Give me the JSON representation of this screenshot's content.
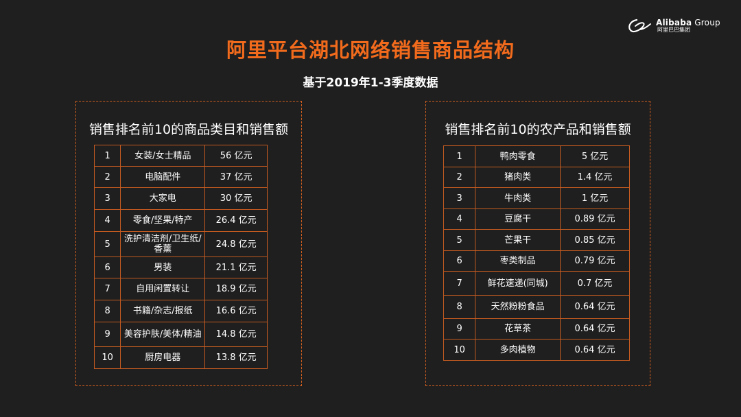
{
  "logo": {
    "brand_bold": "Alibaba",
    "brand_rest": " Group",
    "sub": "阿里巴巴集团"
  },
  "title": "阿里平台湖北网络销售商品结构",
  "subtitle": "基于2019年1-3季度数据",
  "left_panel": {
    "heading": "销售排名前10的商品类目和销售额",
    "rows": [
      {
        "rank": "1",
        "name": "女装/女士精品",
        "value": "56 亿元"
      },
      {
        "rank": "2",
        "name": "电脑配件",
        "value": "37 亿元"
      },
      {
        "rank": "3",
        "name": "大家电",
        "value": "30 亿元"
      },
      {
        "rank": "4",
        "name": "零食/坚果/特产",
        "value": "26.4 亿元"
      },
      {
        "rank": "5",
        "name": "洗护清洁剂/卫生纸/香薰",
        "value": "24.8 亿元"
      },
      {
        "rank": "6",
        "name": "男装",
        "value": "21.1 亿元"
      },
      {
        "rank": "7",
        "name": "自用闲置转让",
        "value": "18.9 亿元"
      },
      {
        "rank": "8",
        "name": "书籍/杂志/报纸",
        "value": "16.6 亿元"
      },
      {
        "rank": "9",
        "name": "美容护肤/美体/精油",
        "value": "14.8 亿元"
      },
      {
        "rank": "10",
        "name": "厨房电器",
        "value": "13.8 亿元"
      }
    ]
  },
  "right_panel": {
    "heading": "销售排名前10的农产品和销售额",
    "rows": [
      {
        "rank": "1",
        "name": "鸭肉零食",
        "value": "5 亿元"
      },
      {
        "rank": "2",
        "name": "猪肉类",
        "value": "1.4 亿元"
      },
      {
        "rank": "3",
        "name": "牛肉类",
        "value": "1 亿元"
      },
      {
        "rank": "4",
        "name": "豆腐干",
        "value": "0.89 亿元"
      },
      {
        "rank": "5",
        "name": "芒果干",
        "value": "0.85 亿元"
      },
      {
        "rank": "6",
        "name": "枣类制品",
        "value": "0.79 亿元"
      },
      {
        "rank": "7",
        "name": "鲜花速递(同城)",
        "value": "0.7 亿元"
      },
      {
        "rank": "8",
        "name": "天然粉粉食品",
        "value": "0.64 亿元"
      },
      {
        "rank": "9",
        "name": "花草茶",
        "value": "0.64 亿元"
      },
      {
        "rank": "10",
        "name": "多肉植物",
        "value": "0.64 亿元"
      }
    ]
  }
}
